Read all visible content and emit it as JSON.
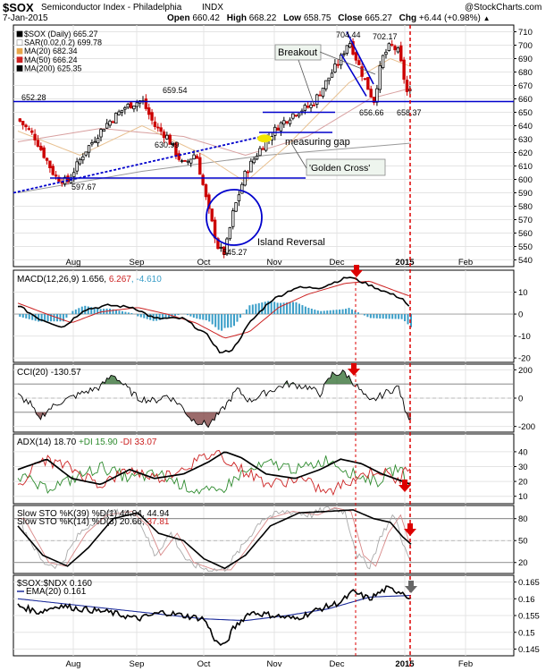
{
  "header": {
    "symbol": "$SOX",
    "name": "Semiconductor Index - Philadelphia",
    "exchange": "INDX",
    "source": "@StockCharts.com",
    "date": "7-Jan-2015",
    "open_label": "Open",
    "open": "660.42",
    "high_label": "High",
    "high": "668.22",
    "low_label": "Low",
    "low": "658.75",
    "close_label": "Close",
    "close": "665.27",
    "chg_label": "Chg",
    "chg": "+6.44 (+0.98%)",
    "up_glyph": "▲"
  },
  "colors": {
    "candle_up": "#000000",
    "candle_down": "#cc0000",
    "ma20": "#e8a64a",
    "ma50": "#cc2222",
    "ma200": "#999999",
    "annot_blue": "#0000cc",
    "macd_hist": "#3a9ec8",
    "cci_fill_pos": "#2e6b2e",
    "cci_fill_neg": "#7a3a3a",
    "adx": "#000000",
    "plus_di": "#2e8b2e",
    "minus_di": "#cc2222",
    "gap_marker": "#f2e600",
    "arrow_red": "#dd0000",
    "arrow_gray": "#666666"
  },
  "chart_data": [
    {
      "panel": "price",
      "type": "candlestick",
      "ylim": [
        535,
        715
      ],
      "yticks": [
        540,
        550,
        560,
        570,
        580,
        590,
        600,
        610,
        620,
        630,
        640,
        650,
        660,
        670,
        680,
        690,
        700,
        710
      ],
      "x_tick_labels": [
        "Aug",
        "Sep",
        "Oct",
        "Nov",
        "Dec",
        "2015",
        "Feb"
      ],
      "legend": [
        {
          "label": "$SOX (Daily) 665.27",
          "color": "#000000",
          "icon": "candle-icon"
        },
        {
          "label": "SAR(0.02,0.2) 699.78",
          "color": "#999999",
          "icon": "dots-icon"
        },
        {
          "label": "MA(20) 682.34",
          "color": "#e8a64a",
          "icon": "line-icon"
        },
        {
          "label": "MA(50) 666.24",
          "color": "#cc2222",
          "icon": "line-icon"
        },
        {
          "label": "MA(200) 625.35",
          "color": "#000000",
          "icon": "line-icon"
        }
      ],
      "price_labels": [
        {
          "text": "652.28",
          "v": 652.28
        },
        {
          "text": "659.54",
          "v": 659.54
        },
        {
          "text": "630.99",
          "v": 630.99
        },
        {
          "text": "597.67",
          "v": 597.67
        },
        {
          "text": "704.44",
          "v": 704.44
        },
        {
          "text": "702.17",
          "v": 702.17
        },
        {
          "text": "656.66",
          "v": 656.66
        },
        {
          "text": "658.37",
          "v": 658.37
        },
        {
          "text": "545.27",
          "v": 545.27
        }
      ],
      "annotations": [
        "Breakout",
        "measuring gap",
        "'Golden Cross'",
        "Island Reversal"
      ],
      "key_levels": [
        658,
        650,
        635,
        601
      ]
    },
    {
      "panel": "macd",
      "title": "MACD(12,26,9) 1.656, 6.267, -4.610",
      "title_parts": [
        "MACD(12,26,9) 1.656, ",
        "6.267",
        ", -4.610"
      ],
      "ylim": [
        -22,
        20
      ],
      "yticks": [
        10,
        0,
        -10,
        -20
      ]
    },
    {
      "panel": "cci",
      "title": "CCI(20) -130.57",
      "ylim": [
        -240,
        240
      ],
      "yticks": [
        200,
        0,
        -200
      ]
    },
    {
      "panel": "adx",
      "title_parts": [
        "ADX(14) 18.70 ",
        "+DI 15.90 ",
        "-DI 33.07"
      ],
      "ylim": [
        5,
        52
      ],
      "yticks": [
        40,
        30,
        20,
        10
      ]
    },
    {
      "panel": "stochastic",
      "title1": "Slow STO %K(39) %D(1) 44.94, 44.94",
      "title2_parts": [
        "Slow STO %K(14) %D(3) 20.66, ",
        "37.81"
      ],
      "ylim": [
        5,
        98
      ],
      "yticks": [
        80,
        50,
        20
      ]
    },
    {
      "panel": "relative",
      "title": "$SOX:$NDX 0.160",
      "title2": "EMA(20) 0.161",
      "ylim": [
        0.143,
        0.167
      ],
      "yticks": [
        0.165,
        0.16,
        0.155,
        0.15,
        0.145
      ]
    }
  ]
}
